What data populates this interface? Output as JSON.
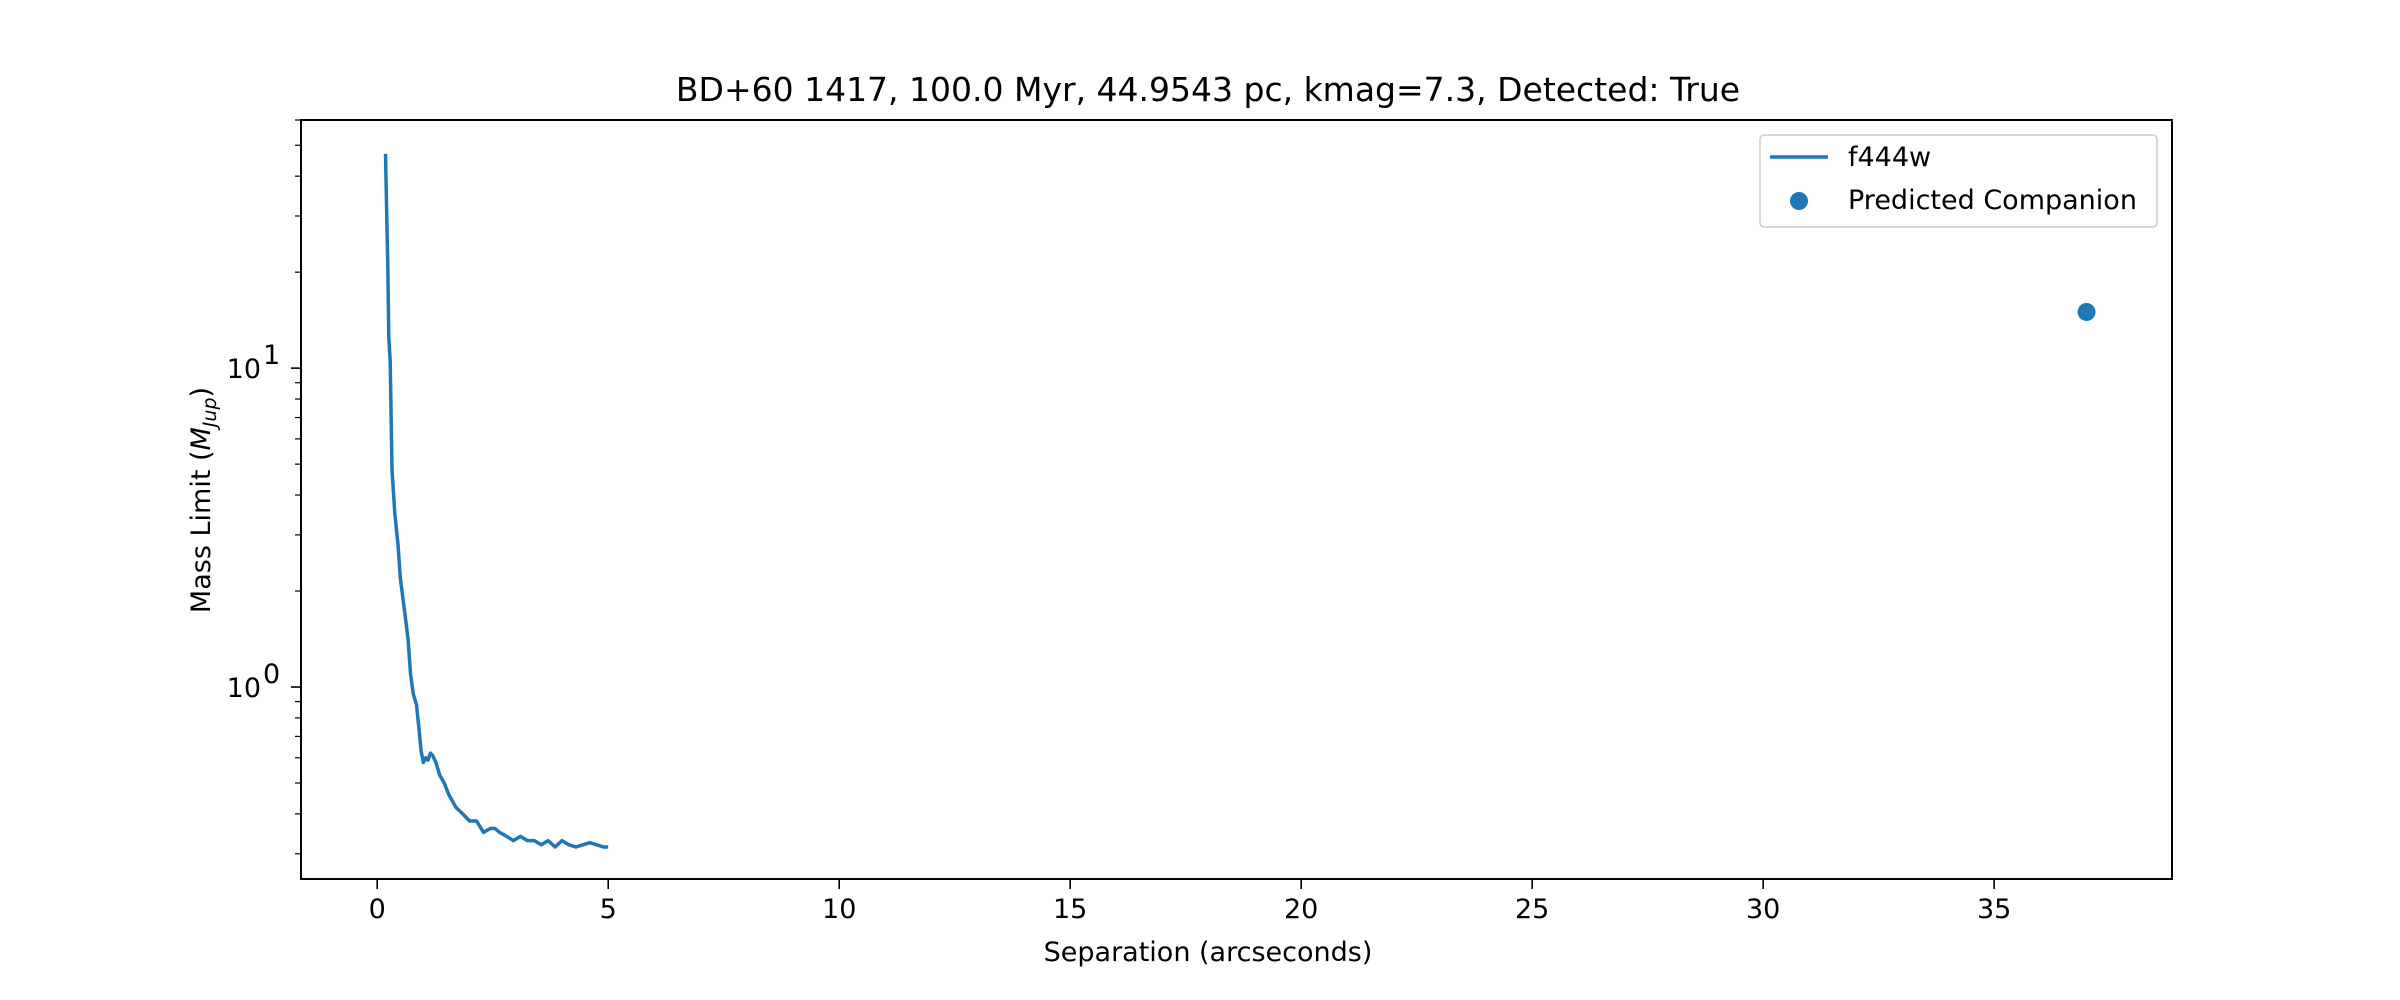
{
  "chart_data": {
    "type": "line",
    "title": "BD+60 1417, 100.0 Myr, 44.9543 pc, kmag=7.3, Detected: True",
    "xlabel": "Separation (arcseconds)",
    "ylabel_main": "Mass Limit (",
    "ylabel_math": "M",
    "ylabel_sub": "Jup",
    "ylabel_close": ")",
    "xlim": [
      -1.65,
      38.85
    ],
    "ylim": [
      0.25,
      60
    ],
    "yscale": "log",
    "grid": false,
    "legend_position": "top-right",
    "x_ticks": [
      0,
      5,
      10,
      15,
      20,
      25,
      30,
      35
    ],
    "x_tick_labels": [
      "0",
      "5",
      "10",
      "15",
      "20",
      "25",
      "30",
      "35"
    ],
    "y_major_ticks": [
      1,
      10
    ],
    "y_tick_labels": [
      {
        "base": "10",
        "exp": "0"
      },
      {
        "base": "10",
        "exp": "1"
      }
    ],
    "colors": {
      "series": "#1f77b4",
      "axis": "#000000",
      "legend_border": "#cccccc"
    },
    "series": [
      {
        "name": "f444w",
        "type": "line",
        "x": [
          0.18,
          0.23,
          0.25,
          0.28,
          0.32,
          0.38,
          0.45,
          0.5,
          0.6,
          0.67,
          0.72,
          0.78,
          0.85,
          0.9,
          0.95,
          1.0,
          1.05,
          1.1,
          1.15,
          1.2,
          1.27,
          1.35,
          1.45,
          1.55,
          1.7,
          1.85,
          2.0,
          2.15,
          2.3,
          2.45,
          2.55,
          2.65,
          2.8,
          2.95,
          3.1,
          3.25,
          3.4,
          3.55,
          3.7,
          3.85,
          4.0,
          4.15,
          4.3,
          4.45,
          4.6,
          4.75,
          4.9,
          5.0
        ],
        "y": [
          47,
          20,
          12.5,
          10.5,
          4.8,
          3.5,
          2.8,
          2.2,
          1.7,
          1.4,
          1.1,
          0.95,
          0.88,
          0.75,
          0.63,
          0.58,
          0.6,
          0.59,
          0.62,
          0.61,
          0.58,
          0.53,
          0.5,
          0.46,
          0.42,
          0.4,
          0.38,
          0.38,
          0.35,
          0.36,
          0.36,
          0.35,
          0.34,
          0.33,
          0.34,
          0.33,
          0.33,
          0.32,
          0.33,
          0.315,
          0.33,
          0.32,
          0.315,
          0.32,
          0.325,
          0.32,
          0.315,
          0.315
        ]
      },
      {
        "name": "Predicted Companion",
        "type": "scatter",
        "x": [
          37.0
        ],
        "y": [
          15.0
        ]
      }
    ]
  }
}
